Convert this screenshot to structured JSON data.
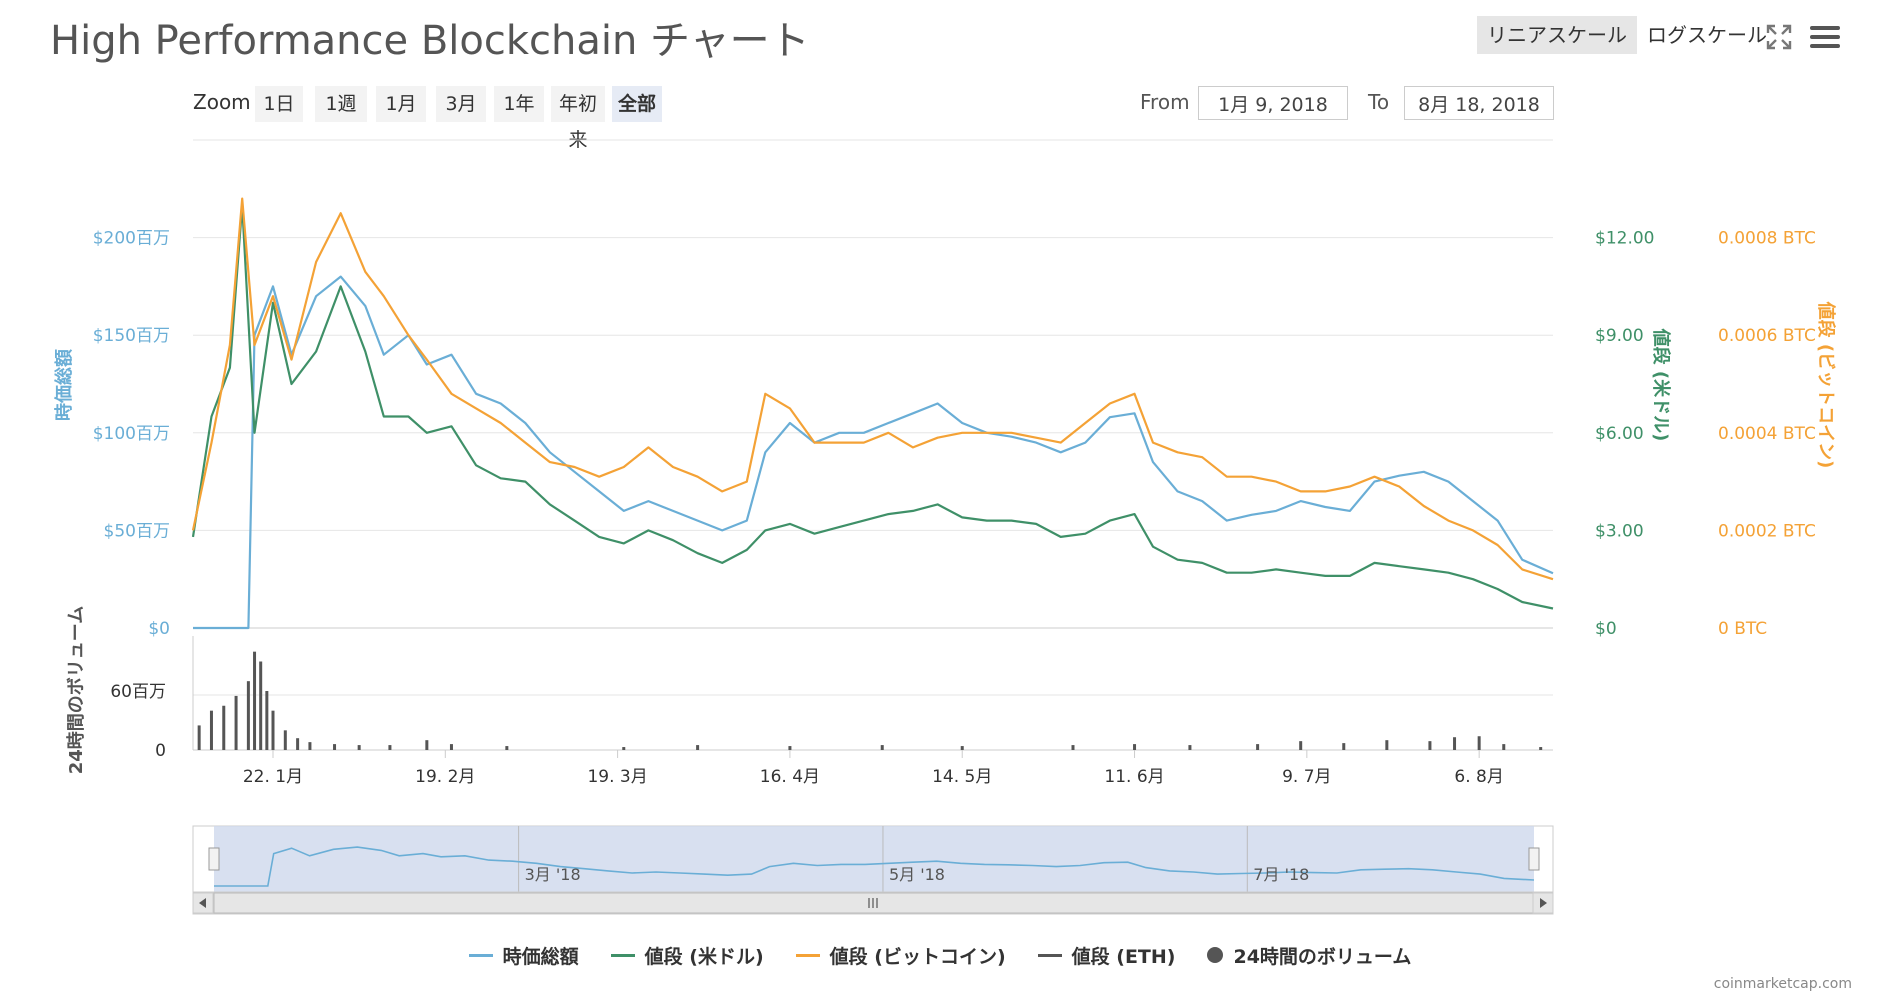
{
  "header": {
    "title": "High Performance Blockchain チャート",
    "linear_label": "リニアスケール",
    "log_label": "ログスケール",
    "fullscreen_icon": "fullscreen-icon",
    "menu_icon": "hamburger-menu-icon"
  },
  "zoom": {
    "label": "Zoom",
    "buttons": [
      "1日",
      "1週",
      "1月",
      "3月",
      "1年",
      "年初来",
      "全部"
    ],
    "active": "全部"
  },
  "range": {
    "from_label": "From",
    "from_value": "1月 9, 2018",
    "to_label": "To",
    "to_value": "8月 18, 2018"
  },
  "chart_data": {
    "type": "line",
    "x_range": [
      "2018-01-09",
      "2018-08-18"
    ],
    "x_tick_labels": [
      "22. 1月",
      "19. 2月",
      "19. 3月",
      "16. 4月",
      "14. 5月",
      "11. 6月",
      "9. 7月",
      "6. 8月"
    ],
    "x_ticks": [
      "2018-01-22",
      "2018-02-19",
      "2018-03-19",
      "2018-04-16",
      "2018-05-14",
      "2018-06-11",
      "2018-07-09",
      "2018-08-06"
    ],
    "axes": {
      "market_cap": {
        "label": "時価総額",
        "ticks": [
          "$0",
          "$50百万",
          "$100百万",
          "$150百万",
          "$200百万"
        ],
        "range": [
          0,
          250
        ],
        "color": "#6aaed6"
      },
      "price_usd": {
        "label": "値段 (米ドル)",
        "ticks": [
          "$0",
          "$3.00",
          "$6.00",
          "$9.00",
          "$12.00"
        ],
        "range": [
          0,
          15
        ],
        "color": "#3f9068"
      },
      "price_btc": {
        "label": "値段 (ビットコイン)",
        "ticks": [
          "0 BTC",
          "0.0002 BTC",
          "0.0004 BTC",
          "0.0006 BTC",
          "0.0008 BTC"
        ],
        "range": [
          0,
          0.001
        ],
        "color": "#f4a236"
      },
      "volume": {
        "label": "24時間のボリューム",
        "ticks": [
          "0",
          "60百万"
        ],
        "range": [
          0,
          120
        ],
        "color": "#555555"
      }
    },
    "series": [
      {
        "name": "時価総額",
        "color": "#6aaed6",
        "points": [
          [
            "2018-01-09",
            0
          ],
          [
            "2018-01-12",
            0
          ],
          [
            "2018-01-15",
            0
          ],
          [
            "2018-01-18",
            0
          ],
          [
            "2018-01-19",
            150
          ],
          [
            "2018-01-22",
            175
          ],
          [
            "2018-01-25",
            140
          ],
          [
            "2018-01-29",
            170
          ],
          [
            "2018-02-02",
            180
          ],
          [
            "2018-02-06",
            165
          ],
          [
            "2018-02-09",
            140
          ],
          [
            "2018-02-13",
            150
          ],
          [
            "2018-02-16",
            135
          ],
          [
            "2018-02-20",
            140
          ],
          [
            "2018-02-24",
            120
          ],
          [
            "2018-02-28",
            115
          ],
          [
            "2018-03-04",
            105
          ],
          [
            "2018-03-08",
            90
          ],
          [
            "2018-03-12",
            80
          ],
          [
            "2018-03-16",
            70
          ],
          [
            "2018-03-20",
            60
          ],
          [
            "2018-03-24",
            65
          ],
          [
            "2018-03-28",
            60
          ],
          [
            "2018-04-01",
            55
          ],
          [
            "2018-04-05",
            50
          ],
          [
            "2018-04-09",
            55
          ],
          [
            "2018-04-12",
            90
          ],
          [
            "2018-04-16",
            105
          ],
          [
            "2018-04-20",
            95
          ],
          [
            "2018-04-24",
            100
          ],
          [
            "2018-04-28",
            100
          ],
          [
            "2018-05-02",
            105
          ],
          [
            "2018-05-06",
            110
          ],
          [
            "2018-05-10",
            115
          ],
          [
            "2018-05-14",
            105
          ],
          [
            "2018-05-18",
            100
          ],
          [
            "2018-05-22",
            98
          ],
          [
            "2018-05-26",
            95
          ],
          [
            "2018-05-30",
            90
          ],
          [
            "2018-06-03",
            95
          ],
          [
            "2018-06-07",
            108
          ],
          [
            "2018-06-11",
            110
          ],
          [
            "2018-06-14",
            85
          ],
          [
            "2018-06-18",
            70
          ],
          [
            "2018-06-22",
            65
          ],
          [
            "2018-06-26",
            55
          ],
          [
            "2018-06-30",
            58
          ],
          [
            "2018-07-04",
            60
          ],
          [
            "2018-07-08",
            65
          ],
          [
            "2018-07-12",
            62
          ],
          [
            "2018-07-16",
            60
          ],
          [
            "2018-07-20",
            75
          ],
          [
            "2018-07-24",
            78
          ],
          [
            "2018-07-28",
            80
          ],
          [
            "2018-08-01",
            75
          ],
          [
            "2018-08-05",
            65
          ],
          [
            "2018-08-09",
            55
          ],
          [
            "2018-08-13",
            35
          ],
          [
            "2018-08-18",
            28
          ]
        ]
      },
      {
        "name": "値段 (米ドル)",
        "color": "#3f9068",
        "points": [
          [
            "2018-01-09",
            2.8
          ],
          [
            "2018-01-12",
            6.5
          ],
          [
            "2018-01-15",
            8.0
          ],
          [
            "2018-01-17",
            13.0
          ],
          [
            "2018-01-19",
            6.0
          ],
          [
            "2018-01-22",
            10.0
          ],
          [
            "2018-01-25",
            7.5
          ],
          [
            "2018-01-29",
            8.5
          ],
          [
            "2018-02-02",
            10.5
          ],
          [
            "2018-02-06",
            8.5
          ],
          [
            "2018-02-09",
            6.5
          ],
          [
            "2018-02-13",
            6.5
          ],
          [
            "2018-02-16",
            6.0
          ],
          [
            "2018-02-20",
            6.2
          ],
          [
            "2018-02-24",
            5.0
          ],
          [
            "2018-02-28",
            4.6
          ],
          [
            "2018-03-04",
            4.5
          ],
          [
            "2018-03-08",
            3.8
          ],
          [
            "2018-03-12",
            3.3
          ],
          [
            "2018-03-16",
            2.8
          ],
          [
            "2018-03-20",
            2.6
          ],
          [
            "2018-03-24",
            3.0
          ],
          [
            "2018-03-28",
            2.7
          ],
          [
            "2018-04-01",
            2.3
          ],
          [
            "2018-04-05",
            2.0
          ],
          [
            "2018-04-09",
            2.4
          ],
          [
            "2018-04-12",
            3.0
          ],
          [
            "2018-04-16",
            3.2
          ],
          [
            "2018-04-20",
            2.9
          ],
          [
            "2018-04-24",
            3.1
          ],
          [
            "2018-04-28",
            3.3
          ],
          [
            "2018-05-02",
            3.5
          ],
          [
            "2018-05-06",
            3.6
          ],
          [
            "2018-05-10",
            3.8
          ],
          [
            "2018-05-14",
            3.4
          ],
          [
            "2018-05-18",
            3.3
          ],
          [
            "2018-05-22",
            3.3
          ],
          [
            "2018-05-26",
            3.2
          ],
          [
            "2018-05-30",
            2.8
          ],
          [
            "2018-06-03",
            2.9
          ],
          [
            "2018-06-07",
            3.3
          ],
          [
            "2018-06-11",
            3.5
          ],
          [
            "2018-06-14",
            2.5
          ],
          [
            "2018-06-18",
            2.1
          ],
          [
            "2018-06-22",
            2.0
          ],
          [
            "2018-06-26",
            1.7
          ],
          [
            "2018-06-30",
            1.7
          ],
          [
            "2018-07-04",
            1.8
          ],
          [
            "2018-07-08",
            1.7
          ],
          [
            "2018-07-12",
            1.6
          ],
          [
            "2018-07-16",
            1.6
          ],
          [
            "2018-07-20",
            2.0
          ],
          [
            "2018-07-24",
            1.9
          ],
          [
            "2018-07-28",
            1.8
          ],
          [
            "2018-08-01",
            1.7
          ],
          [
            "2018-08-05",
            1.5
          ],
          [
            "2018-08-09",
            1.2
          ],
          [
            "2018-08-13",
            0.8
          ],
          [
            "2018-08-18",
            0.6
          ]
        ]
      },
      {
        "name": "値段 (ビットコイン)",
        "color": "#f4a236",
        "points": [
          [
            "2018-01-09",
            0.0002
          ],
          [
            "2018-01-12",
            0.00038
          ],
          [
            "2018-01-15",
            0.00058
          ],
          [
            "2018-01-17",
            0.00088
          ],
          [
            "2018-01-19",
            0.00058
          ],
          [
            "2018-01-22",
            0.00068
          ],
          [
            "2018-01-25",
            0.00055
          ],
          [
            "2018-01-29",
            0.00075
          ],
          [
            "2018-02-02",
            0.00085
          ],
          [
            "2018-02-06",
            0.00073
          ],
          [
            "2018-02-09",
            0.00068
          ],
          [
            "2018-02-13",
            0.0006
          ],
          [
            "2018-02-16",
            0.00055
          ],
          [
            "2018-02-20",
            0.00048
          ],
          [
            "2018-02-24",
            0.00045
          ],
          [
            "2018-02-28",
            0.00042
          ],
          [
            "2018-03-04",
            0.00038
          ],
          [
            "2018-03-08",
            0.00034
          ],
          [
            "2018-03-12",
            0.00033
          ],
          [
            "2018-03-16",
            0.00031
          ],
          [
            "2018-03-20",
            0.00033
          ],
          [
            "2018-03-24",
            0.00037
          ],
          [
            "2018-03-28",
            0.00033
          ],
          [
            "2018-04-01",
            0.00031
          ],
          [
            "2018-04-05",
            0.00028
          ],
          [
            "2018-04-09",
            0.0003
          ],
          [
            "2018-04-12",
            0.00048
          ],
          [
            "2018-04-16",
            0.00045
          ],
          [
            "2018-04-20",
            0.00038
          ],
          [
            "2018-04-24",
            0.00038
          ],
          [
            "2018-04-28",
            0.00038
          ],
          [
            "2018-05-02",
            0.0004
          ],
          [
            "2018-05-06",
            0.00037
          ],
          [
            "2018-05-10",
            0.00039
          ],
          [
            "2018-05-14",
            0.0004
          ],
          [
            "2018-05-18",
            0.0004
          ],
          [
            "2018-05-22",
            0.0004
          ],
          [
            "2018-05-26",
            0.00039
          ],
          [
            "2018-05-30",
            0.00038
          ],
          [
            "2018-06-03",
            0.00042
          ],
          [
            "2018-06-07",
            0.00046
          ],
          [
            "2018-06-11",
            0.00048
          ],
          [
            "2018-06-14",
            0.00038
          ],
          [
            "2018-06-18",
            0.00036
          ],
          [
            "2018-06-22",
            0.00035
          ],
          [
            "2018-06-26",
            0.00031
          ],
          [
            "2018-06-30",
            0.00031
          ],
          [
            "2018-07-04",
            0.0003
          ],
          [
            "2018-07-08",
            0.00028
          ],
          [
            "2018-07-12",
            0.00028
          ],
          [
            "2018-07-16",
            0.00029
          ],
          [
            "2018-07-20",
            0.00031
          ],
          [
            "2018-07-24",
            0.00029
          ],
          [
            "2018-07-28",
            0.00025
          ],
          [
            "2018-08-01",
            0.00022
          ],
          [
            "2018-08-05",
            0.0002
          ],
          [
            "2018-08-09",
            0.00017
          ],
          [
            "2018-08-13",
            0.00012
          ],
          [
            "2018-08-18",
            0.0001
          ]
        ]
      },
      {
        "name": "値段 (ETH)",
        "color": "#555555",
        "points": []
      },
      {
        "name": "24時間のボリューム",
        "color": "#555555",
        "type": "bar",
        "points": [
          [
            "2018-01-10",
            25
          ],
          [
            "2018-01-12",
            40
          ],
          [
            "2018-01-14",
            45
          ],
          [
            "2018-01-16",
            55
          ],
          [
            "2018-01-18",
            70
          ],
          [
            "2018-01-19",
            100
          ],
          [
            "2018-01-20",
            90
          ],
          [
            "2018-01-21",
            60
          ],
          [
            "2018-01-22",
            40
          ],
          [
            "2018-01-24",
            20
          ],
          [
            "2018-01-26",
            12
          ],
          [
            "2018-01-28",
            8
          ],
          [
            "2018-02-01",
            6
          ],
          [
            "2018-02-05",
            5
          ],
          [
            "2018-02-10",
            5
          ],
          [
            "2018-02-16",
            10
          ],
          [
            "2018-02-20",
            6
          ],
          [
            "2018-03-01",
            4
          ],
          [
            "2018-03-20",
            3
          ],
          [
            "2018-04-01",
            5
          ],
          [
            "2018-04-16",
            4
          ],
          [
            "2018-05-01",
            5
          ],
          [
            "2018-05-14",
            4
          ],
          [
            "2018-06-01",
            5
          ],
          [
            "2018-06-11",
            6
          ],
          [
            "2018-06-20",
            5
          ],
          [
            "2018-07-01",
            6
          ],
          [
            "2018-07-08",
            9
          ],
          [
            "2018-07-15",
            7
          ],
          [
            "2018-07-22",
            10
          ],
          [
            "2018-07-29",
            9
          ],
          [
            "2018-08-02",
            13
          ],
          [
            "2018-08-06",
            14
          ],
          [
            "2018-08-10",
            6
          ],
          [
            "2018-08-16",
            3
          ]
        ]
      }
    ],
    "navigator": {
      "tick_labels": [
        "3月 '18",
        "5月 '18",
        "7月 '18"
      ]
    }
  },
  "legend": [
    {
      "label": "時価総額",
      "color": "#6aaed6",
      "marker": "line"
    },
    {
      "label": "値段 (米ドル)",
      "color": "#3f9068",
      "marker": "line"
    },
    {
      "label": "値段 (ビットコイン)",
      "color": "#f4a236",
      "marker": "line"
    },
    {
      "label": "値段 (ETH)",
      "color": "#555555",
      "marker": "line"
    },
    {
      "label": "24時間のボリューム",
      "color": "#555555",
      "marker": "dot"
    }
  ],
  "credits": "coinmarketcap.com"
}
